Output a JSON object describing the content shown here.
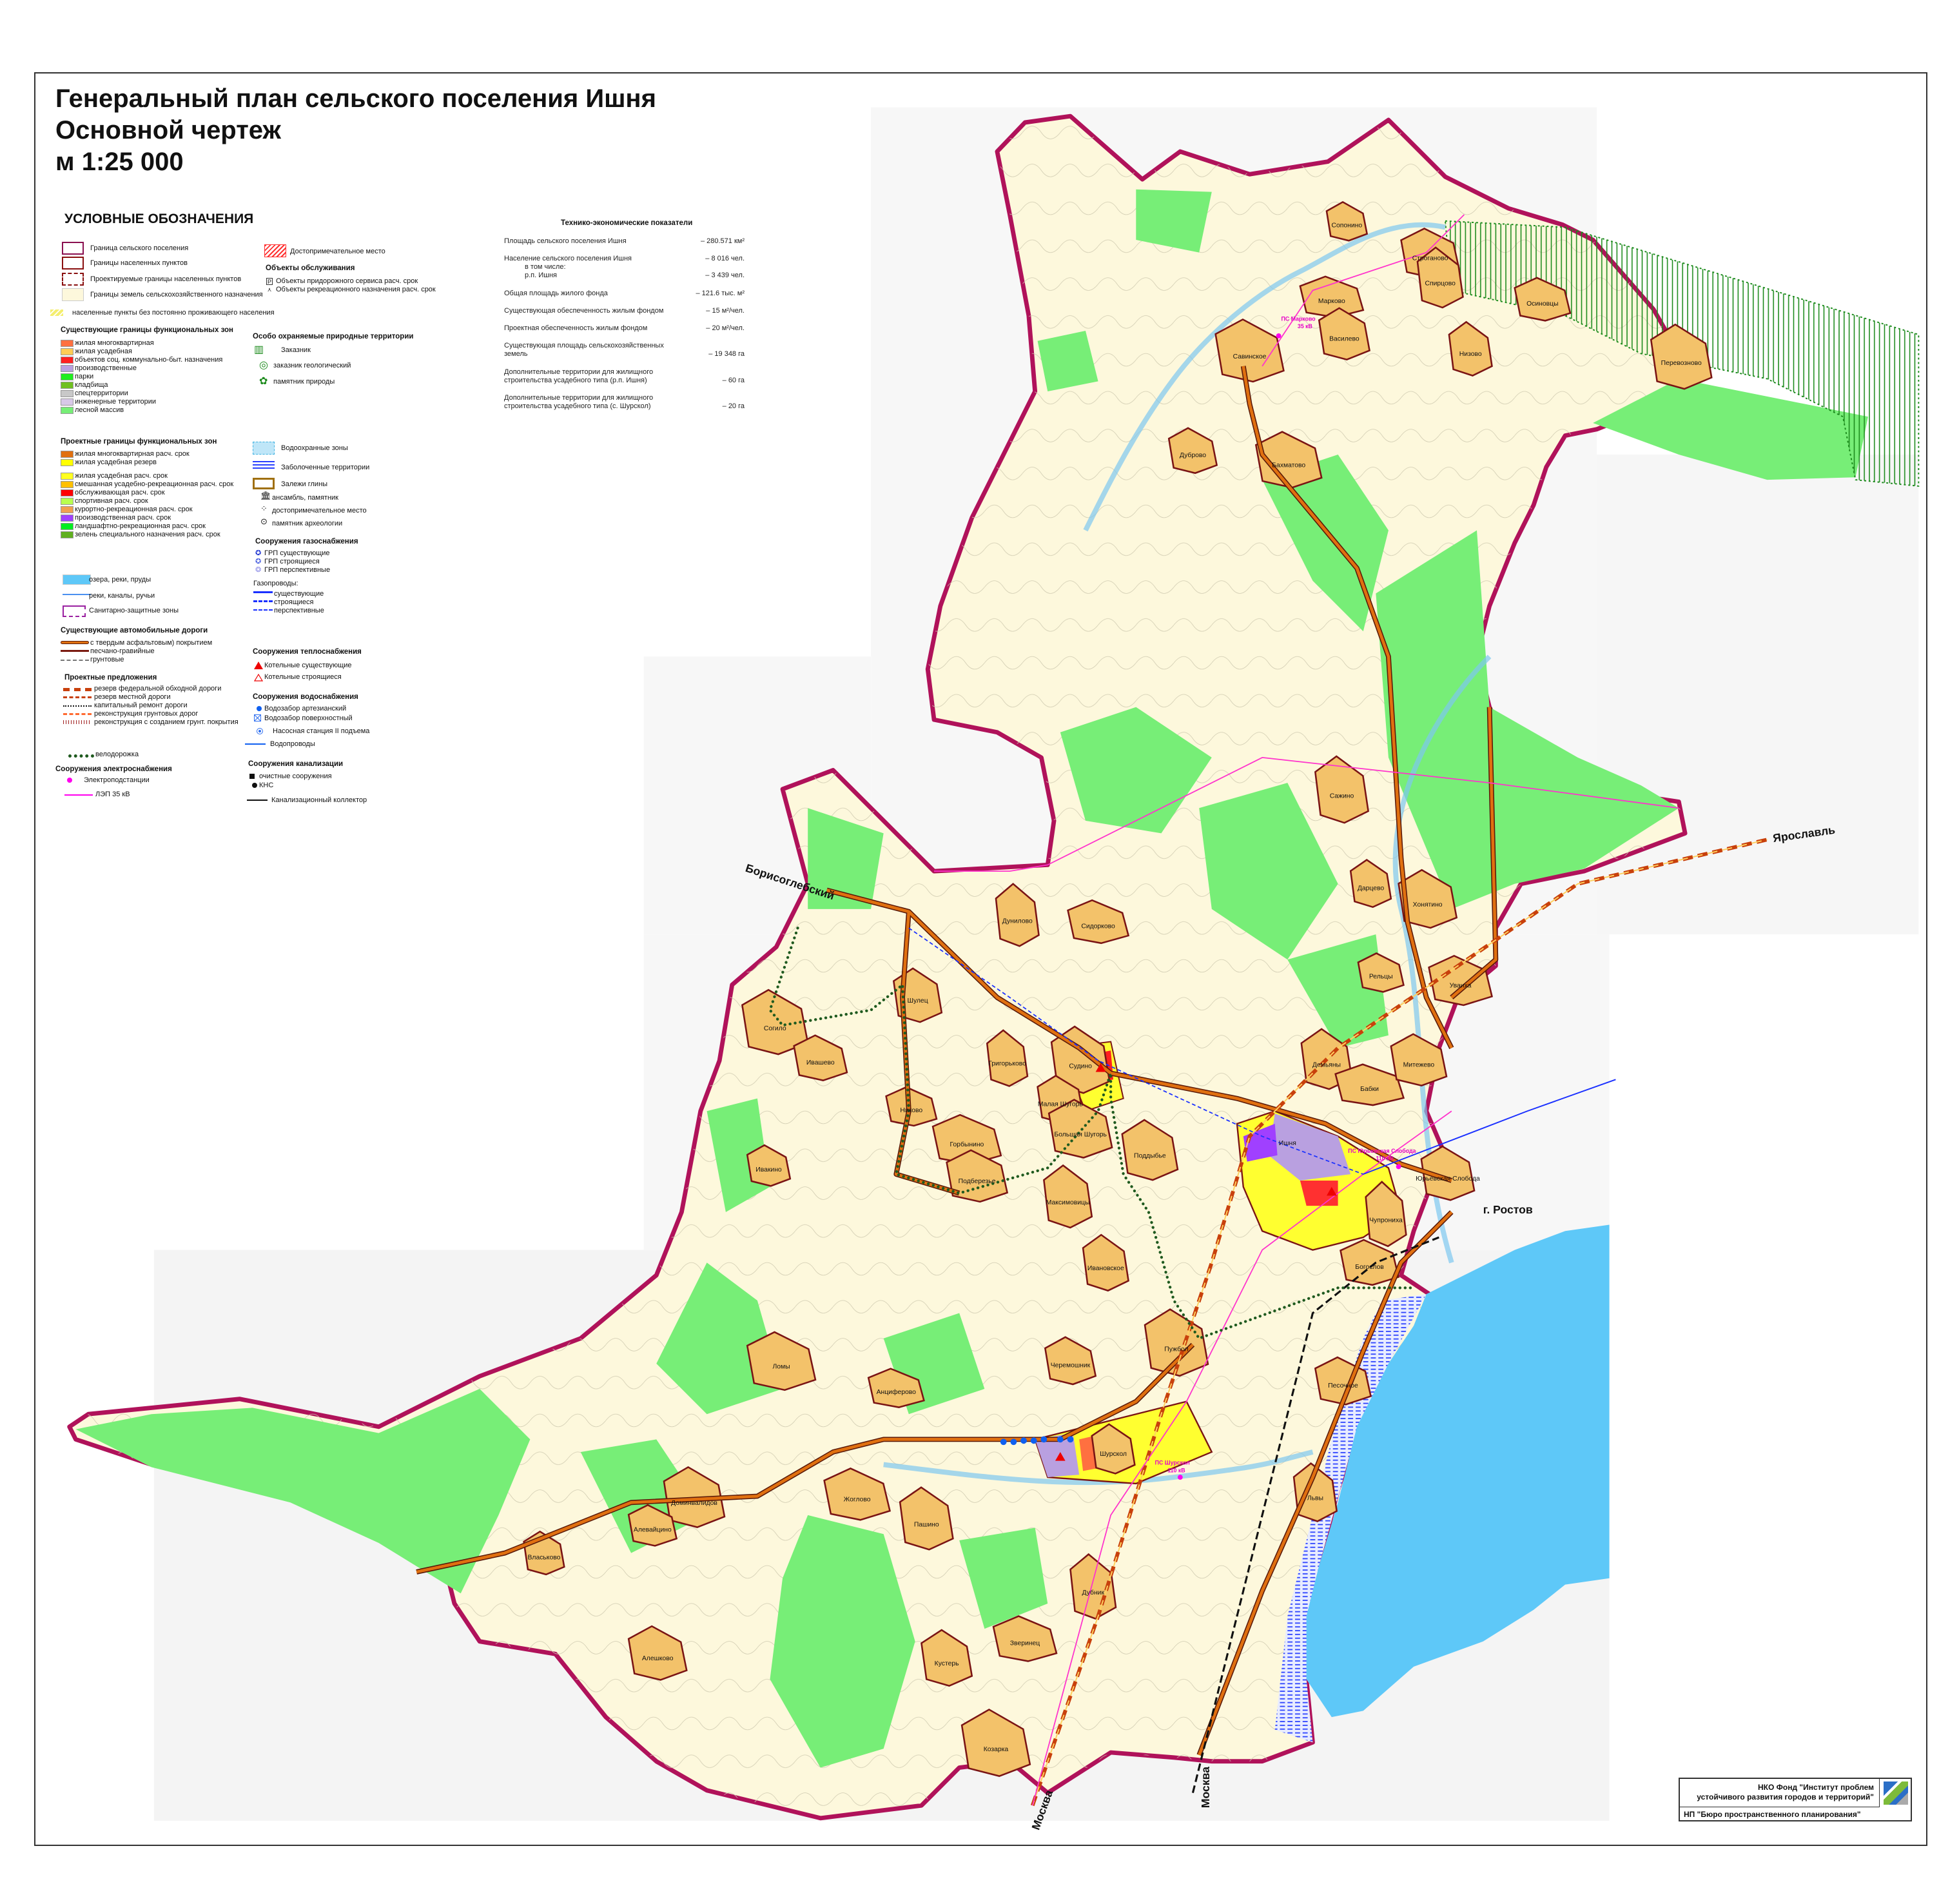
{
  "title": {
    "line1": "Генеральный план сельского поселения Ишня",
    "line2": "Основной чертеж",
    "scale": "м 1:25 000"
  },
  "colors": {
    "boundary": "#b0125a",
    "forest": "#77ee77",
    "agri": "#fdf8dc",
    "water": "#5ec8f8",
    "village_fill": "#f3c26a",
    "village_border": "#7a1414",
    "road": "#d96a10",
    "bypass": "#c8400c",
    "bike": "#1f5a1f",
    "power": "#ff33cc",
    "gas": "#1a3cff"
  },
  "legend": {
    "title": "УСЛОВНЫЕ ОБОЗНАЧЕНИЯ",
    "boundaries": [
      {
        "label": "Граница сельского поселения",
        "swatch": "box-border",
        "color": "#8a1050"
      },
      {
        "label": "Границы населенных пунктов",
        "swatch": "box-border",
        "color": "#8a1010"
      },
      {
        "label": "Проектируемые границы населенных пунктов",
        "swatch": "box-dash",
        "color": "#8a1010"
      },
      {
        "label": "Границы земель сельскохозяйственного назначения",
        "swatch": "fill",
        "color": "#fdf8dc"
      },
      {
        "label": "населенные пункты без постоянно проживающего населения",
        "swatch": "hatch",
        "color": "#f4ee70"
      }
    ],
    "existing_zones": {
      "title": "Существующие границы функциональных зон",
      "items": [
        {
          "label": "жилая многоквартирная",
          "color": "#ff7040"
        },
        {
          "label": "жилая усадебная",
          "color": "#ffcc55"
        },
        {
          "label": "объектов соц. коммунально-быт. назначения",
          "color": "#ff2020"
        },
        {
          "label": "производственные",
          "color": "#b9a0e0"
        },
        {
          "label": "парки",
          "color": "#20ee20"
        },
        {
          "label": "кладбища",
          "color": "#70c020"
        },
        {
          "label": "спецтерритории",
          "color": "#c8c8c8"
        },
        {
          "label": "инженерные территории",
          "color": "#d8c8e8"
        },
        {
          "label": "лесной массив",
          "color": "#77ee77"
        }
      ]
    },
    "project_zones": {
      "title": "Проектные границы функциональных зон",
      "items": [
        {
          "label": "жилая многоквартирная расч. срок",
          "color": "#e07010"
        },
        {
          "label": "жилая усадебная резерв",
          "color": "#ffff00"
        },
        {
          "label": "жилая усадебная расч. срок",
          "color": "#ffff20"
        },
        {
          "label": "смешанная усадебно-рекреационная  расч. срок",
          "color": "#ffc000"
        },
        {
          "label": "обслуживающая расч. срок",
          "color": "#ff0000"
        },
        {
          "label": "спортивная расч. срок",
          "color": "#b8ff50"
        },
        {
          "label": "курортно-рекреационная расч. срок",
          "color": "#f0a050"
        },
        {
          "label": "производственная расч. срок",
          "color": "#a040ff"
        },
        {
          "label": "ландшафтно-рекреационная расч. срок",
          "color": "#00ee20"
        },
        {
          "label": "зелень специального назначения расч. срок",
          "color": "#60b020"
        }
      ]
    },
    "water": [
      {
        "label": "озера, реки, пруды",
        "swatch": "fill",
        "color": "#5ec8f8"
      },
      {
        "label": "реки, каналы, ручьи",
        "swatch": "line",
        "color": "#4a90f0"
      },
      {
        "label": "Санитарно-защитные зоны",
        "swatch": "szz",
        "color": "#9a20a0"
      }
    ],
    "existing_roads": {
      "title": "Существующие автомобильные дороги",
      "items": [
        {
          "label": "с твердым асфальтовым) покрытием",
          "swatch": "road",
          "color": "#e07010"
        },
        {
          "label": "песчано-гравийные",
          "swatch": "line-thick",
          "color": "#7a1a10"
        },
        {
          "label": "грунтовые",
          "swatch": "dashline",
          "color": "#777777"
        }
      ]
    },
    "project_roads": {
      "title": "Проектные предложения",
      "items": [
        {
          "label": "резерв федеральной обходной дороги",
          "swatch": "dash-thick",
          "color": "#c8400c"
        },
        {
          "label": "резерв местной дороги",
          "swatch": "dash-mid",
          "color": "#c8400c"
        },
        {
          "label": "капитальный ремонт дороги",
          "swatch": "dotline",
          "color": "#111111"
        },
        {
          "label": "реконструкция грунтовых дорог",
          "swatch": "dash-mid",
          "color": "#ff6a30"
        },
        {
          "label": "реконструкция с созданием грунт. покрытия",
          "swatch": "ticks",
          "color": "#a02020"
        }
      ]
    },
    "bike": {
      "label": "велодорожка",
      "color": "#1f5a1f"
    },
    "power": {
      "title": "Сооружения электроснабжения",
      "items": [
        {
          "label": "Электроподстанции",
          "swatch": "circle",
          "color": "#ff00ee"
        },
        {
          "label": "ЛЭП 35 кВ",
          "swatch": "line",
          "color": "#ff00ee"
        }
      ]
    },
    "landmark": {
      "label": "Достопримечательное место",
      "color": "#ff3030"
    },
    "service": {
      "title": "Объекты обслуживания",
      "items": [
        {
          "label": "Объекты придорожного сервиса расч. срок",
          "icon": "parking-icon",
          "glyph": "P"
        },
        {
          "label": "Объекты рекреационного назначения расч. срок",
          "icon": "recreation-icon",
          "glyph": "⋏"
        }
      ]
    },
    "protected": {
      "title": "Особо охраняемые природные территории",
      "items": [
        {
          "label": "Заказник",
          "icon": "reserve-icon",
          "glyph": "▥"
        },
        {
          "label": "заказник геологический",
          "icon": "geological-reserve-icon",
          "glyph": "◎"
        },
        {
          "label": "памятник природы",
          "icon": "nature-monument-icon",
          "glyph": "✿"
        }
      ]
    },
    "misc": [
      {
        "label": "Водоохранные зоны",
        "swatch": "waterzone",
        "color": "#bfe6f8"
      },
      {
        "label": "Заболоченные территории",
        "swatch": "swamp",
        "color": "#2a40ff"
      },
      {
        "label": "Залежи глины",
        "swatch": "clay",
        "color": "#a07010"
      },
      {
        "label": "ансамбль, памятник",
        "swatch": "glyph",
        "glyph": "🏛",
        "icon": "monument-icon"
      },
      {
        "label": "достопримечательное место",
        "swatch": "glyph",
        "glyph": "⁘",
        "icon": "sight-icon"
      },
      {
        "label": "памятник археологии",
        "swatch": "glyph",
        "glyph": "⊙",
        "icon": "archaeology-icon"
      }
    ],
    "gas": {
      "title": "Сооружения газоснабжения",
      "items": [
        {
          "label": "ГРП существующие",
          "glyph": "✪",
          "icon": "grp-existing-icon",
          "color": "#1a30d0"
        },
        {
          "label": "ГРП строящиеся",
          "glyph": "✪",
          "icon": "grp-building-icon",
          "color": "#4a60e0"
        },
        {
          "label": "ГРП перспективные",
          "glyph": "❂",
          "icon": "grp-planned-icon",
          "color": "#9090e8"
        }
      ],
      "pipes_title": "Газопроводы:",
      "pipes": [
        {
          "label": "существующие",
          "swatch": "line-thick",
          "color": "#1a30ff"
        },
        {
          "label": "строящиеся",
          "swatch": "dash-mid",
          "color": "#1a30ff"
        },
        {
          "label": "перспективные",
          "swatch": "dashline",
          "color": "#1a30ff"
        }
      ]
    },
    "heat": {
      "title": "Сооружения теплоснабжения",
      "items": [
        {
          "label": "Котельные существующие",
          "swatch": "triangle",
          "color": "#ee0000"
        },
        {
          "label": "Котельные строящиеся",
          "swatch": "tri-outline",
          "color": "#ee0000"
        }
      ]
    },
    "water_supply": {
      "title": "Сооружения водоснабжения",
      "items": [
        {
          "label": "Водозабор артезианский",
          "swatch": "circle",
          "color": "#1060f0"
        },
        {
          "label": "Водозабор поверхностный",
          "swatch": "xbox",
          "color": "#3070f0"
        },
        {
          "label": "Насосная станция II подъема",
          "swatch": "ring",
          "color": "#3070f0"
        },
        {
          "label": "Водопроводы",
          "swatch": "line",
          "color": "#1060f0"
        }
      ]
    },
    "sewer": {
      "title": "Сооружения канализации",
      "items": [
        {
          "label": "очистные сооружения",
          "swatch": "square",
          "color": "#111111"
        },
        {
          "label": "КНС",
          "swatch": "circle",
          "color": "#111111"
        },
        {
          "label": "Канализационный коллектор",
          "swatch": "line",
          "color": "#111111"
        }
      ]
    }
  },
  "tech": {
    "title": "Технико-экономические показатели",
    "rows": [
      {
        "label": "Площадь сельского поселения Ишня",
        "value": "– 280.571 км²"
      },
      {
        "label": "Население сельского поселения Ишня",
        "value": "– 8 016 чел."
      },
      {
        "label": "в том числе:",
        "value": ""
      },
      {
        "label": "р.п. Ишня",
        "value": "– 3 439 чел."
      },
      {
        "label": "Общая площадь жилого фонда",
        "value": "– 121.6 тыс. м²"
      },
      {
        "label": "Существующая обеспеченность жилым фондом",
        "value": "– 15 м²/чел."
      },
      {
        "label": "Проектная обеспеченность жилым фондом",
        "value": "– 20 м²/чел."
      },
      {
        "label": "Существующая площадь сельскохозяйственных",
        "value": ""
      },
      {
        "label": "земель",
        "value": "– 19 348 га"
      },
      {
        "label": "Дополнительные территории для жилищного",
        "value": ""
      },
      {
        "label": "строительства усадебного типа (р.п. Ишня)",
        "value": "– 60 га"
      },
      {
        "label": "Дополнительные территории для жилищного",
        "value": ""
      },
      {
        "label": "строительства усадебного типа (с. Шурскол)",
        "value": "– 20 га"
      }
    ]
  },
  "map": {
    "villages": [
      "Сопонино",
      "Строганово",
      "Спирцово",
      "Марково",
      "Василево",
      "Савинское",
      "Осиновцы",
      "Низово",
      "Перевозново",
      "Дуброво",
      "Бахматово",
      "Сажино",
      "Дарцево",
      "Хонятино",
      "Рельцы",
      "Уваиха",
      "Демьяны",
      "Бабки",
      "Митежево",
      "Дунилово",
      "Сидорково",
      "Шулец",
      "Согило",
      "Ивашево",
      "Григорьково",
      "Судино",
      "Малая Шугорь",
      "Большая Шугорь",
      "Никово",
      "Горбынино",
      "Поддыбье",
      "Ивакино",
      "Подберезье",
      "Максимовицы",
      "Ишня",
      "Юрьевская Слобода",
      "Чупрониха",
      "Богослов",
      "Ивановское",
      "Пужбол",
      "Черемошник",
      "Ломы",
      "Анциферово",
      "Шурскол",
      "Доминвалидов",
      "Алевайцино",
      "Жоглово",
      "Пашино",
      "Власьково",
      "Алешково",
      "Дубник",
      "Зверинец",
      "Кустерь",
      "Козарка",
      "Песочное",
      "Львы"
    ],
    "directions": {
      "borisoglebsky": "Борисоглебский",
      "yaroslavl": "Ярославль",
      "rostov": "г. Ростов",
      "moscow_rail": "Москва",
      "moscow_road": "Москва"
    },
    "substations": [
      "ПС Марково",
      "35 кВ",
      "ПС Юрьевская Слобода",
      "110 кВ",
      "ПС Шурскол",
      "110 кВ"
    ]
  },
  "credits": {
    "org1_line1": "НКО Фонд \"Институт проблем",
    "org1_line2": "устойчивого развития городов и территорий\"",
    "org2": "НП \"Бюро пространственного планирования\""
  }
}
